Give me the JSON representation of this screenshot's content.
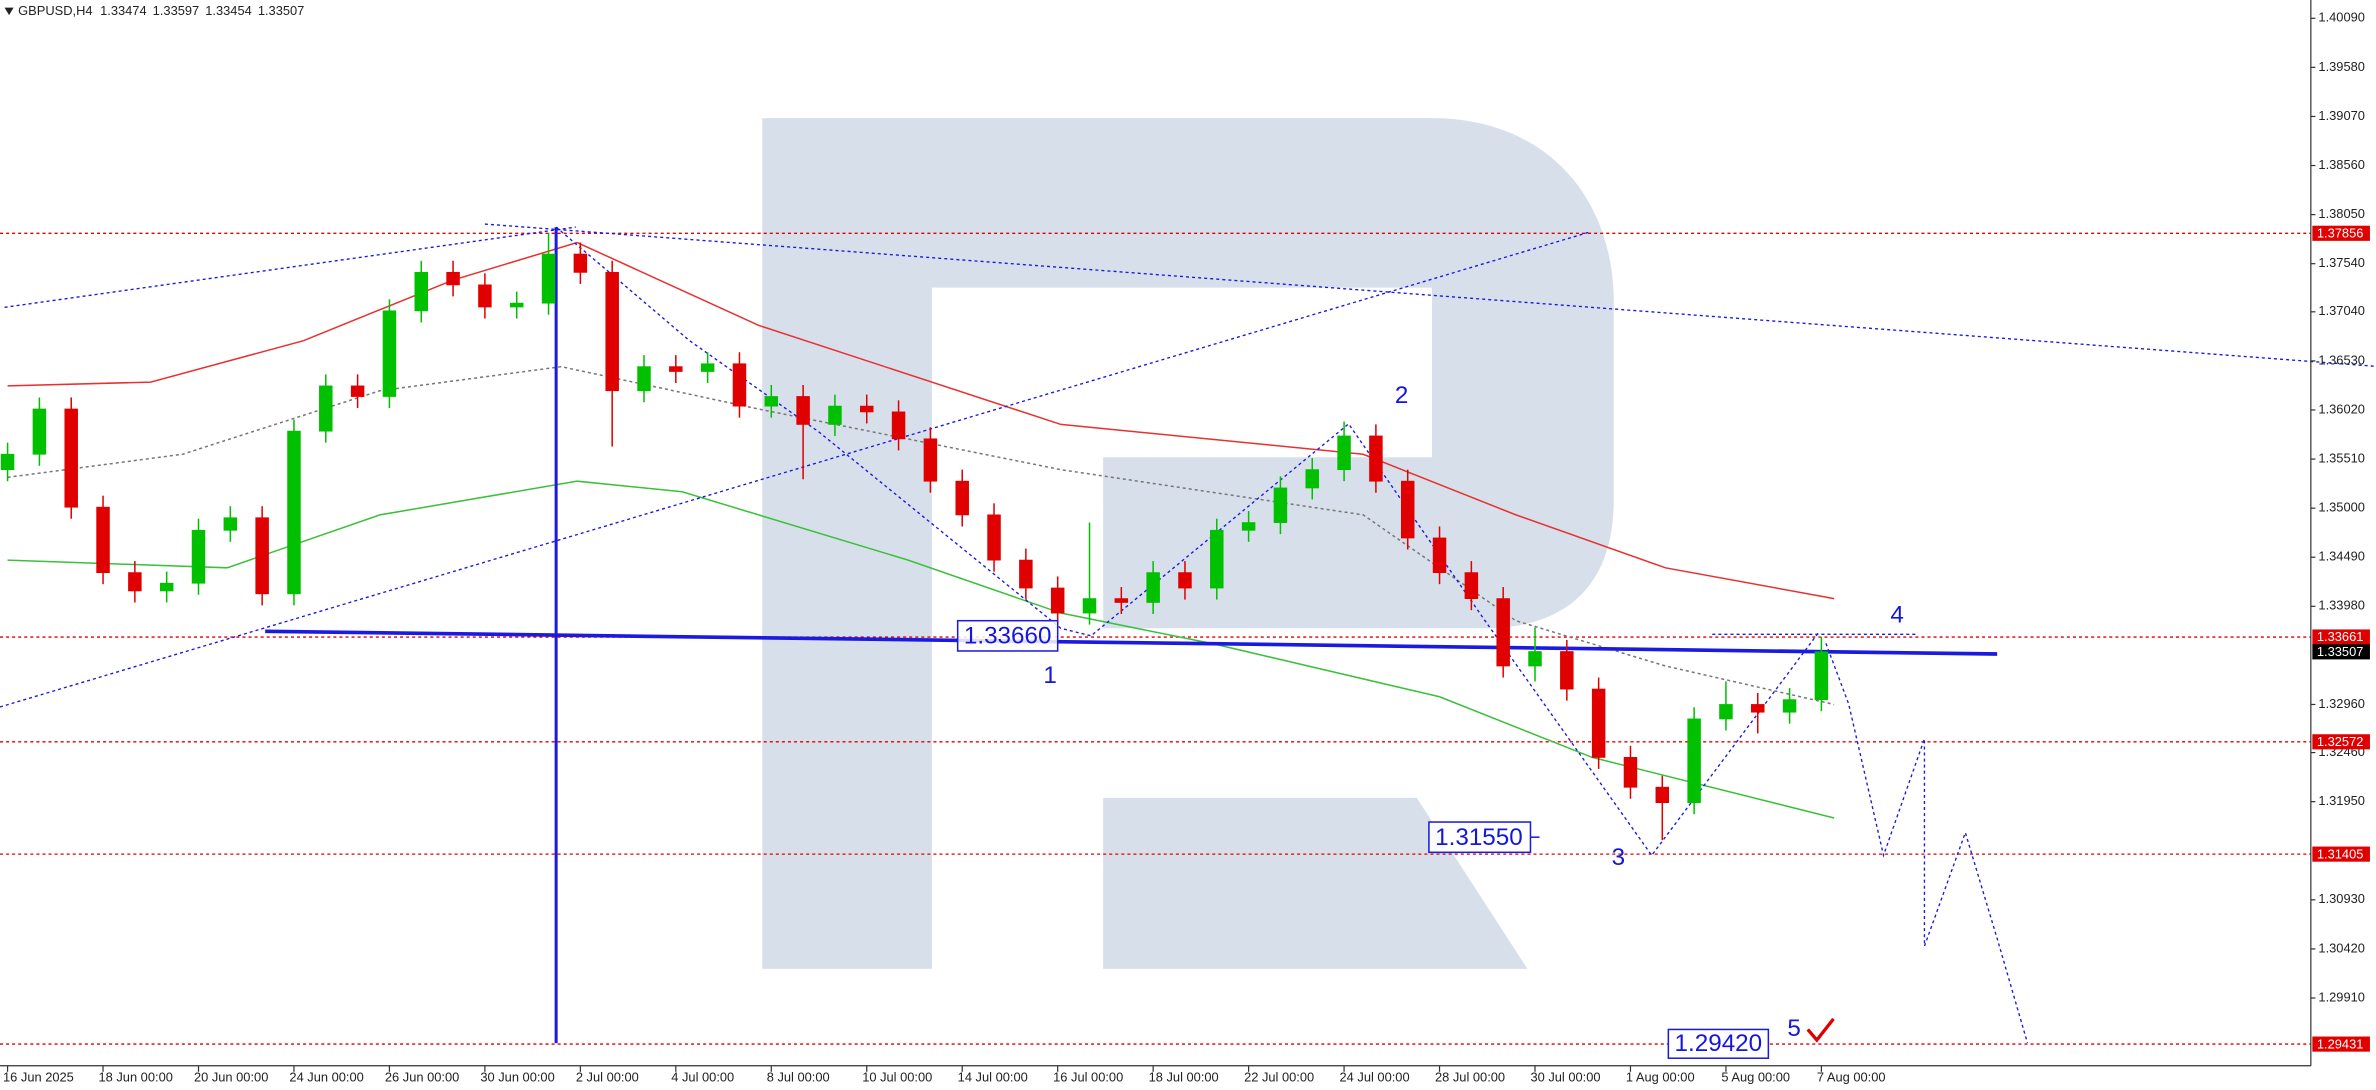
{
  "chart_data": {
    "type": "candlestick",
    "symbol": "GBPUSD,H4",
    "quote": [
      1.33474,
      1.33597,
      1.33454,
      1.33507
    ],
    "open": [
      1.354,
      1.3556,
      1.3603,
      1.3501,
      1.3433,
      1.3414,
      1.3422,
      1.3477,
      1.349,
      1.3411,
      1.358,
      1.3627,
      1.3616,
      1.3705,
      1.3745,
      1.3732,
      1.3709,
      1.3713,
      1.3764,
      1.3745,
      1.3622,
      1.3647,
      1.3642,
      1.365,
      1.3606,
      1.3616,
      1.3587,
      1.3606,
      1.36,
      1.3572,
      1.3528,
      1.3493,
      1.3446,
      1.3417,
      1.3391,
      1.3406,
      1.3402,
      1.3433,
      1.3417,
      1.3477,
      1.3485,
      1.3521,
      1.354,
      1.3575,
      1.3528,
      1.3469,
      1.3433,
      1.3406,
      1.3336,
      1.3351,
      1.3312,
      1.3241,
      1.321,
      1.3194,
      1.3281,
      1.3296,
      1.3288,
      1.3301
    ],
    "high": [
      1.3568,
      1.3615,
      1.3615,
      1.3513,
      1.3445,
      1.3434,
      1.3489,
      1.3502,
      1.3502,
      1.3592,
      1.3639,
      1.3639,
      1.3717,
      1.3757,
      1.3757,
      1.3744,
      1.3725,
      1.3786,
      1.3776,
      1.3757,
      1.3659,
      1.3659,
      1.3662,
      1.3662,
      1.3628,
      1.3628,
      1.3618,
      1.3618,
      1.3612,
      1.3584,
      1.354,
      1.3505,
      1.3458,
      1.3429,
      1.3485,
      1.3418,
      1.3445,
      1.3445,
      1.3489,
      1.3497,
      1.3533,
      1.3552,
      1.359,
      1.3587,
      1.354,
      1.3481,
      1.3445,
      1.3418,
      1.3376,
      1.3363,
      1.3324,
      1.3253,
      1.3222,
      1.3293,
      1.332,
      1.3308,
      1.3313,
      1.3366
    ],
    "low": [
      1.3528,
      1.3544,
      1.3489,
      1.3421,
      1.3402,
      1.3402,
      1.341,
      1.3465,
      1.3399,
      1.3399,
      1.3568,
      1.3604,
      1.3604,
      1.3693,
      1.372,
      1.3697,
      1.3697,
      1.3701,
      1.3733,
      1.3564,
      1.361,
      1.363,
      1.363,
      1.3594,
      1.3594,
      1.353,
      1.3575,
      1.3588,
      1.356,
      1.3516,
      1.3481,
      1.3434,
      1.3405,
      1.3379,
      1.3379,
      1.339,
      1.339,
      1.3405,
      1.3405,
      1.3465,
      1.3473,
      1.3509,
      1.3528,
      1.3516,
      1.3457,
      1.3421,
      1.3394,
      1.3324,
      1.332,
      1.33,
      1.3229,
      1.3198,
      1.3155,
      1.3182,
      1.3269,
      1.3266,
      1.3276,
      1.3289
    ],
    "close": [
      1.3556,
      1.3603,
      1.3501,
      1.3433,
      1.3414,
      1.3422,
      1.3477,
      1.349,
      1.3411,
      1.358,
      1.3627,
      1.3616,
      1.3705,
      1.3745,
      1.3732,
      1.3709,
      1.3713,
      1.3764,
      1.3745,
      1.3622,
      1.3647,
      1.3642,
      1.365,
      1.3606,
      1.3616,
      1.3587,
      1.3606,
      1.36,
      1.3572,
      1.3528,
      1.3493,
      1.3446,
      1.3417,
      1.3391,
      1.3406,
      1.3402,
      1.3433,
      1.3417,
      1.3477,
      1.3485,
      1.3521,
      1.354,
      1.3575,
      1.3528,
      1.3469,
      1.3433,
      1.3406,
      1.3336,
      1.3351,
      1.3312,
      1.3241,
      1.321,
      1.3194,
      1.3281,
      1.3296,
      1.3288,
      1.3301,
      1.33507
    ],
    "up_color": "#00c000",
    "down_color": "#e00000",
    "overlays": [
      {
        "color": "#e83030",
        "x": [
          0,
          4.5,
          9.3,
          14,
          17.9,
          23.6,
          33.1,
          42.6,
          47.4,
          52.1,
          57.4
        ],
        "values": [
          1.3627,
          1.3631,
          1.3674,
          1.3737,
          1.3776,
          1.369,
          1.3587,
          1.3556,
          1.3493,
          1.3438,
          1.3406
        ]
      },
      {
        "color": "#3cc03c",
        "x": [
          0,
          6.9,
          11.7,
          17.9,
          21.2,
          28.3,
          33.1,
          37.9,
          45,
          49.8,
          57.4
        ],
        "values": [
          1.3446,
          1.3438,
          1.3493,
          1.3528,
          1.3517,
          1.3446,
          1.3391,
          1.3359,
          1.3304,
          1.3241,
          1.3178
        ]
      },
      {
        "color": "#777777",
        "dashed": true,
        "x": [
          0,
          5.5,
          11.7,
          17.4,
          23.6,
          33.1,
          42.6,
          47.4,
          52.1,
          57.4
        ],
        "values": [
          1.3532,
          1.3556,
          1.3622,
          1.3647,
          1.3603,
          1.354,
          1.3493,
          1.3383,
          1.3336,
          1.3296
        ]
      }
    ],
    "levels": [
      1.37856,
      1.33661,
      1.32572,
      1.31405,
      1.29431
    ],
    "level_color": "#e00000",
    "last_price": 1.33507,
    "xlim": [
      0,
      72
    ],
    "xticks": [
      {
        "value": 0,
        "label": "16 Jun 2025"
      },
      {
        "value": 3,
        "label": "18 Jun 00:00"
      },
      {
        "value": 6,
        "label": "20 Jun 00:00"
      },
      {
        "value": 9,
        "label": "24 Jun 00:00"
      },
      {
        "value": 12,
        "label": "26 Jun 00:00"
      },
      {
        "value": 15,
        "label": "30 Jun 00:00"
      },
      {
        "value": 18,
        "label": "2 Jul 00:00"
      },
      {
        "value": 21,
        "label": "4 Jul 00:00"
      },
      {
        "value": 24,
        "label": "8 Jul 00:00"
      },
      {
        "value": 27,
        "label": "10 Jul 00:00"
      },
      {
        "value": 30,
        "label": "14 Jul 00:00"
      },
      {
        "value": 33,
        "label": "16 Jul 00:00"
      },
      {
        "value": 36,
        "label": "18 Jul 00:00"
      },
      {
        "value": 39,
        "label": "22 Jul 00:00"
      },
      {
        "value": 42,
        "label": "24 Jul 00:00"
      },
      {
        "value": 45,
        "label": "28 Jul 00:00"
      },
      {
        "value": 48,
        "label": "30 Jul 00:00"
      },
      {
        "value": 51,
        "label": "1 Aug 00:00"
      },
      {
        "value": 54,
        "label": "5 Aug 00:00"
      },
      {
        "value": 57,
        "label": "7 Aug 00:00"
      }
    ],
    "ylim": [
      1.2919,
      1.4028
    ],
    "yticks": [
      {
        "value": 1.4009,
        "label": "1.40090"
      },
      {
        "value": 1.3958,
        "label": "1.39580"
      },
      {
        "value": 1.3907,
        "label": "1.39070"
      },
      {
        "value": 1.3856,
        "label": "1.38560"
      },
      {
        "value": 1.3805,
        "label": "1.38050"
      },
      {
        "value": 1.3754,
        "label": "1.37540"
      },
      {
        "value": 1.3704,
        "label": "1.37040"
      },
      {
        "value": 1.3653,
        "label": "1.36530"
      },
      {
        "value": 1.3602,
        "label": "1.36020"
      },
      {
        "value": 1.3551,
        "label": "1.35510"
      },
      {
        "value": 1.35,
        "label": "1.35000"
      },
      {
        "value": 1.3449,
        "label": "1.34490"
      },
      {
        "value": 1.3398,
        "label": "1.33980"
      },
      {
        "value": 1.3296,
        "label": "1.32960"
      },
      {
        "value": 1.3246,
        "label": "1.32460"
      },
      {
        "value": 1.3195,
        "label": "1.31950"
      },
      {
        "value": 1.3093,
        "label": "1.30930"
      },
      {
        "value": 1.3042,
        "label": "1.30420"
      },
      {
        "value": 1.2991,
        "label": "1.29910"
      }
    ],
    "wave_labels": [
      "1",
      "2",
      "3",
      "4",
      "5"
    ],
    "price_labels": [
      "1.33660",
      "1.31550",
      "1.29420"
    ]
  }
}
